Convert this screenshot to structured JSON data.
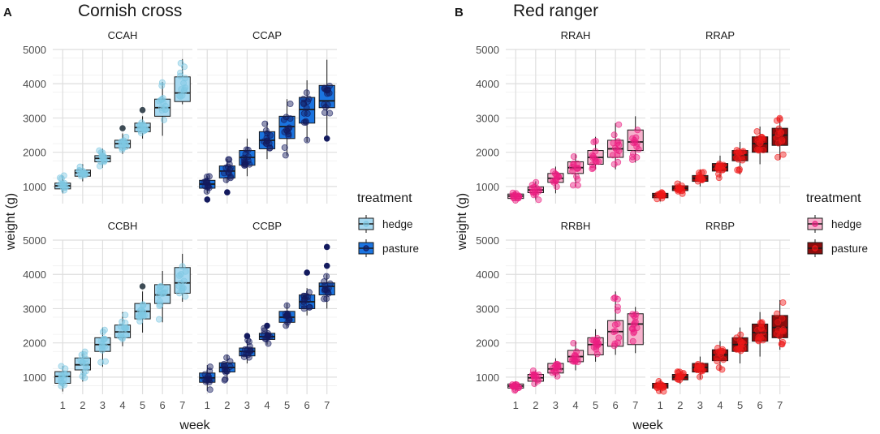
{
  "figure": {
    "panels": [
      {
        "letter": "A",
        "title": "Cornish cross",
        "ylabel": "weight (g)",
        "xlabel": "week",
        "legend": {
          "title": "treatment",
          "items": [
            {
              "label": "hedge",
              "fill": "#a6d8f0",
              "point": "#7ec8e3"
            },
            {
              "label": "pasture",
              "fill": "#1b74e0",
              "point": "#131a5e"
            }
          ]
        }
      },
      {
        "letter": "B",
        "title": "Red ranger",
        "ylabel": "weight (g)",
        "xlabel": "week",
        "legend": {
          "title": "treatment",
          "items": [
            {
              "label": "hedge",
              "fill": "#f6b1cc",
              "point": "#ec1c80"
            },
            {
              "label": "pasture",
              "fill": "#8b0d0d",
              "point": "#f01818"
            }
          ]
        }
      }
    ]
  },
  "chart_data": [
    {
      "type": "boxplot",
      "facet": "CCAH",
      "group": "Cornish cross",
      "treatment": "hedge",
      "xlabel": "week",
      "ylabel": "weight (g)",
      "ylim": [
        500,
        5000
      ],
      "x_ticks": [
        "1",
        "2",
        "3",
        "4",
        "5",
        "6",
        "7"
      ],
      "y_ticks": [
        1000,
        2000,
        3000,
        4000,
        5000
      ],
      "box_fill": "#a6d8f0",
      "point_color": "#7ec8e3",
      "outlier_color": "#3d4b55",
      "boxes": [
        {
          "week": 1,
          "min": 800,
          "q1": 930,
          "median": 1020,
          "q3": 1100,
          "max": 1320
        },
        {
          "week": 2,
          "min": 1150,
          "q1": 1300,
          "median": 1400,
          "q3": 1480,
          "max": 1650
        },
        {
          "week": 3,
          "min": 1550,
          "q1": 1720,
          "median": 1820,
          "q3": 1900,
          "max": 2100
        },
        {
          "week": 4,
          "min": 1950,
          "q1": 2130,
          "median": 2250,
          "q3": 2350,
          "max": 2550
        },
        {
          "week": 5,
          "min": 2400,
          "q1": 2600,
          "median": 2720,
          "q3": 2850,
          "max": 3050
        },
        {
          "week": 6,
          "min": 2480,
          "q1": 3050,
          "median": 3300,
          "q3": 3550,
          "max": 4050
        },
        {
          "week": 7,
          "min": 3400,
          "q1": 3480,
          "median": 3730,
          "q3": 4200,
          "max": 4720
        }
      ],
      "outliers": [
        {
          "week": 4,
          "value": 2700
        },
        {
          "week": 5,
          "value": 3230
        }
      ]
    },
    {
      "type": "boxplot",
      "facet": "CCAP",
      "group": "Cornish cross",
      "treatment": "pasture",
      "xlabel": "week",
      "ylabel": "weight (g)",
      "ylim": [
        500,
        5000
      ],
      "x_ticks": [
        "1",
        "2",
        "3",
        "4",
        "5",
        "6",
        "7"
      ],
      "y_ticks": [
        1000,
        2000,
        3000,
        4000,
        5000
      ],
      "box_fill": "#1b74e0",
      "point_color": "#131a5e",
      "outlier_color": "#131a5e",
      "boxes": [
        {
          "week": 1,
          "min": 800,
          "q1": 950,
          "median": 1070,
          "q3": 1180,
          "max": 1300
        },
        {
          "week": 2,
          "min": 1100,
          "q1": 1250,
          "median": 1450,
          "q3": 1600,
          "max": 1800
        },
        {
          "week": 3,
          "min": 1300,
          "q1": 1620,
          "median": 1850,
          "q3": 2050,
          "max": 2400
        },
        {
          "week": 4,
          "min": 1800,
          "q1": 2100,
          "median": 2350,
          "q3": 2600,
          "max": 2900
        },
        {
          "week": 5,
          "min": 1900,
          "q1": 2400,
          "median": 2750,
          "q3": 3050,
          "max": 3550
        },
        {
          "week": 6,
          "min": 2300,
          "q1": 2850,
          "median": 3250,
          "q3": 3600,
          "max": 4100
        },
        {
          "week": 7,
          "min": 2450,
          "q1": 3300,
          "median": 3500,
          "q3": 3950,
          "max": 4700
        }
      ],
      "outliers": [
        {
          "week": 1,
          "value": 620
        },
        {
          "week": 2,
          "value": 830
        },
        {
          "week": 7,
          "value": 2400
        }
      ]
    },
    {
      "type": "boxplot",
      "facet": "CCBH",
      "group": "Cornish cross",
      "treatment": "hedge",
      "xlabel": "week",
      "ylabel": "weight (g)",
      "ylim": [
        500,
        5000
      ],
      "x_ticks": [
        "1",
        "2",
        "3",
        "4",
        "5",
        "6",
        "7"
      ],
      "y_ticks": [
        1000,
        2000,
        3000,
        4000,
        5000
      ],
      "box_fill": "#a6d8f0",
      "point_color": "#7ec8e3",
      "outlier_color": "#3d4b55",
      "boxes": [
        {
          "week": 1,
          "min": 580,
          "q1": 820,
          "median": 1020,
          "q3": 1160,
          "max": 1320
        },
        {
          "week": 2,
          "min": 870,
          "q1": 1210,
          "median": 1360,
          "q3": 1560,
          "max": 1750
        },
        {
          "week": 3,
          "min": 1300,
          "q1": 1750,
          "median": 1950,
          "q3": 2150,
          "max": 2450
        },
        {
          "week": 4,
          "min": 1900,
          "q1": 2150,
          "median": 2320,
          "q3": 2520,
          "max": 2900
        },
        {
          "week": 5,
          "min": 2300,
          "q1": 2700,
          "median": 2920,
          "q3": 3150,
          "max": 3500
        },
        {
          "week": 6,
          "min": 2600,
          "q1": 3150,
          "median": 3400,
          "q3": 3700,
          "max": 4100
        },
        {
          "week": 7,
          "min": 3200,
          "q1": 3450,
          "median": 3750,
          "q3": 4200,
          "max": 4600
        }
      ],
      "outliers": [
        {
          "week": 5,
          "value": 3650
        }
      ]
    },
    {
      "type": "boxplot",
      "facet": "CCBP",
      "group": "Cornish cross",
      "treatment": "pasture",
      "xlabel": "week",
      "ylabel": "weight (g)",
      "ylim": [
        500,
        5000
      ],
      "x_ticks": [
        "1",
        "2",
        "3",
        "4",
        "5",
        "6",
        "7"
      ],
      "y_ticks": [
        1000,
        2000,
        3000,
        4000,
        5000
      ],
      "box_fill": "#1b74e0",
      "point_color": "#131a5e",
      "outlier_color": "#131a5e",
      "boxes": [
        {
          "week": 1,
          "min": 600,
          "q1": 850,
          "median": 980,
          "q3": 1120,
          "max": 1350
        },
        {
          "week": 2,
          "min": 880,
          "q1": 1150,
          "median": 1280,
          "q3": 1420,
          "max": 1650
        },
        {
          "week": 3,
          "min": 1400,
          "q1": 1620,
          "median": 1750,
          "q3": 1850,
          "max": 2100
        },
        {
          "week": 4,
          "min": 1950,
          "q1": 2100,
          "median": 2180,
          "q3": 2280,
          "max": 2450
        },
        {
          "week": 5,
          "min": 2450,
          "q1": 2600,
          "median": 2750,
          "q3": 2920,
          "max": 3150
        },
        {
          "week": 6,
          "min": 2800,
          "q1": 3000,
          "median": 3200,
          "q3": 3400,
          "max": 3600
        },
        {
          "week": 7,
          "min": 3000,
          "q1": 3400,
          "median": 3650,
          "q3": 3750,
          "max": 4000
        }
      ],
      "outliers": [
        {
          "week": 3,
          "value": 2200
        },
        {
          "week": 4,
          "value": 2500
        },
        {
          "week": 6,
          "value": 4050
        },
        {
          "week": 7,
          "value": 4250
        },
        {
          "week": 7,
          "value": 4800
        }
      ]
    },
    {
      "type": "boxplot",
      "facet": "RRAH",
      "group": "Red ranger",
      "treatment": "hedge",
      "xlabel": "week",
      "ylabel": "weight (g)",
      "ylim": [
        500,
        5000
      ],
      "x_ticks": [
        "1",
        "2",
        "3",
        "4",
        "5",
        "6",
        "7"
      ],
      "y_ticks": [
        1000,
        2000,
        3000,
        4000,
        5000
      ],
      "box_fill": "#f6b1cc",
      "point_color": "#ec1c80",
      "outlier_color": "#ec1c80",
      "boxes": [
        {
          "week": 1,
          "min": 580,
          "q1": 650,
          "median": 720,
          "q3": 780,
          "max": 850
        },
        {
          "week": 2,
          "min": 600,
          "q1": 820,
          "median": 900,
          "q3": 990,
          "max": 1150
        },
        {
          "week": 3,
          "min": 800,
          "q1": 1120,
          "median": 1240,
          "q3": 1380,
          "max": 1580
        },
        {
          "week": 4,
          "min": 1000,
          "q1": 1380,
          "median": 1550,
          "q3": 1720,
          "max": 1950
        },
        {
          "week": 5,
          "min": 1500,
          "q1": 1650,
          "median": 1850,
          "q3": 2050,
          "max": 2450
        },
        {
          "week": 6,
          "min": 1500,
          "q1": 1850,
          "median": 2100,
          "q3": 2350,
          "max": 2850
        },
        {
          "week": 7,
          "min": 1700,
          "q1": 2050,
          "median": 2300,
          "q3": 2650,
          "max": 3050
        }
      ],
      "outliers": []
    },
    {
      "type": "boxplot",
      "facet": "RRAP",
      "group": "Red ranger",
      "treatment": "pasture",
      "xlabel": "week",
      "ylabel": "weight (g)",
      "ylim": [
        500,
        5000
      ],
      "x_ticks": [
        "1",
        "2",
        "3",
        "4",
        "5",
        "6",
        "7"
      ],
      "y_ticks": [
        1000,
        2000,
        3000,
        4000,
        5000
      ],
      "box_fill": "#8b0d0d",
      "point_color": "#f01818",
      "outlier_color": "#f01818",
      "boxes": [
        {
          "week": 1,
          "min": 560,
          "q1": 670,
          "median": 740,
          "q3": 800,
          "max": 880
        },
        {
          "week": 2,
          "min": 780,
          "q1": 880,
          "median": 950,
          "q3": 1020,
          "max": 1150
        },
        {
          "week": 3,
          "min": 1000,
          "q1": 1150,
          "median": 1240,
          "q3": 1320,
          "max": 1500
        },
        {
          "week": 4,
          "min": 1250,
          "q1": 1450,
          "median": 1570,
          "q3": 1670,
          "max": 1900
        },
        {
          "week": 5,
          "min": 1350,
          "q1": 1750,
          "median": 1920,
          "q3": 2050,
          "max": 2300
        },
        {
          "week": 6,
          "min": 1650,
          "q1": 2000,
          "median": 2250,
          "q3": 2450,
          "max": 2750
        },
        {
          "week": 7,
          "min": 1780,
          "q1": 2200,
          "median": 2500,
          "q3": 2700,
          "max": 3000
        }
      ],
      "outliers": []
    },
    {
      "type": "boxplot",
      "facet": "RRBH",
      "group": "Red ranger",
      "treatment": "hedge",
      "xlabel": "week",
      "ylabel": "weight (g)",
      "ylim": [
        500,
        5000
      ],
      "x_ticks": [
        "1",
        "2",
        "3",
        "4",
        "5",
        "6",
        "7"
      ],
      "y_ticks": [
        1000,
        2000,
        3000,
        4000,
        5000
      ],
      "box_fill": "#f6b1cc",
      "point_color": "#ec1c80",
      "outlier_color": "#ec1c80",
      "boxes": [
        {
          "week": 1,
          "min": 600,
          "q1": 680,
          "median": 740,
          "q3": 800,
          "max": 880
        },
        {
          "week": 2,
          "min": 750,
          "q1": 880,
          "median": 980,
          "q3": 1080,
          "max": 1200
        },
        {
          "week": 3,
          "min": 1000,
          "q1": 1120,
          "median": 1240,
          "q3": 1400,
          "max": 1550
        },
        {
          "week": 4,
          "min": 1200,
          "q1": 1450,
          "median": 1600,
          "q3": 1780,
          "max": 2050
        },
        {
          "week": 5,
          "min": 1450,
          "q1": 1650,
          "median": 1950,
          "q3": 2150,
          "max": 2400
        },
        {
          "week": 6,
          "min": 1650,
          "q1": 1900,
          "median": 2330,
          "q3": 2650,
          "max": 3500
        },
        {
          "week": 7,
          "min": 1700,
          "q1": 1950,
          "median": 2550,
          "q3": 2850,
          "max": 3050
        }
      ],
      "outliers": []
    },
    {
      "type": "boxplot",
      "facet": "RRBP",
      "group": "Red ranger",
      "treatment": "pasture",
      "xlabel": "week",
      "ylabel": "weight (g)",
      "ylim": [
        500,
        5000
      ],
      "x_ticks": [
        "1",
        "2",
        "3",
        "4",
        "5",
        "6",
        "7"
      ],
      "y_ticks": [
        1000,
        2000,
        3000,
        4000,
        5000
      ],
      "box_fill": "#8b0d0d",
      "point_color": "#f01818",
      "outlier_color": "#f01818",
      "boxes": [
        {
          "week": 1,
          "min": 550,
          "q1": 680,
          "median": 740,
          "q3": 820,
          "max": 920
        },
        {
          "week": 2,
          "min": 800,
          "q1": 920,
          "median": 1000,
          "q3": 1080,
          "max": 1200
        },
        {
          "week": 3,
          "min": 950,
          "q1": 1150,
          "median": 1280,
          "q3": 1400,
          "max": 1600
        },
        {
          "week": 4,
          "min": 1200,
          "q1": 1480,
          "median": 1650,
          "q3": 1800,
          "max": 2050
        },
        {
          "week": 5,
          "min": 1400,
          "q1": 1750,
          "median": 1950,
          "q3": 2150,
          "max": 2450
        },
        {
          "week": 6,
          "min": 1600,
          "q1": 2050,
          "median": 2300,
          "q3": 2550,
          "max": 2900
        },
        {
          "week": 7,
          "min": 1800,
          "q1": 2150,
          "median": 2450,
          "q3": 2800,
          "max": 3250
        }
      ],
      "outliers": []
    }
  ]
}
